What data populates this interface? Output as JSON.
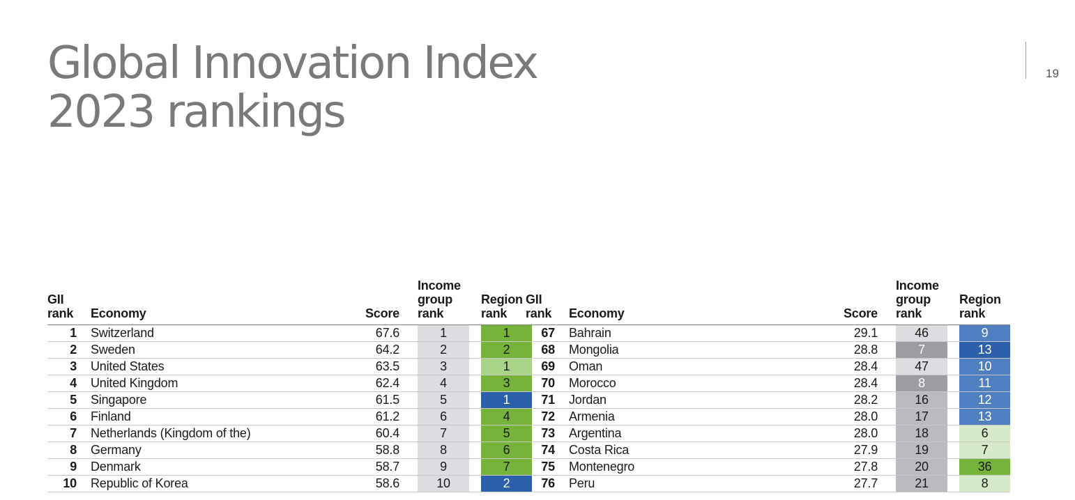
{
  "title": {
    "line1": "Global Innovation Index",
    "line2": "2023 rankings"
  },
  "page_number": "19",
  "headers": {
    "gii_rank_1": "GII",
    "gii_rank_2": "rank",
    "economy": "Economy",
    "score": "Score",
    "income_1": "Income",
    "income_2": "group",
    "income_3": "rank",
    "region_1": "Region",
    "region_2": "rank"
  },
  "colors": {
    "text": "#1a1a1a",
    "title": "#7a7a7a",
    "income_light_gray": "#dcdde0",
    "income_mid_gray": "#b9bbc0",
    "income_dark_gray": "#9c9ca3",
    "region_green": "#76b33a",
    "region_light_green": "#a9d487",
    "region_pale_green": "#d6eac7",
    "region_dark_blue": "#2d60ab",
    "region_mid_blue": "#4f7fc1"
  },
  "table_left": [
    {
      "gii": "1",
      "economy": "Switzerland",
      "score": "67.6",
      "income": "1",
      "income_bg": "#dcdde0",
      "income_fg": "#1a1a1a",
      "region": "1",
      "region_bg": "#76b33a",
      "region_fg": "#1a1a1a"
    },
    {
      "gii": "2",
      "economy": "Sweden",
      "score": "64.2",
      "income": "2",
      "income_bg": "#dcdde0",
      "income_fg": "#1a1a1a",
      "region": "2",
      "region_bg": "#76b33a",
      "region_fg": "#1a1a1a"
    },
    {
      "gii": "3",
      "economy": "United States",
      "score": "63.5",
      "income": "3",
      "income_bg": "#dcdde0",
      "income_fg": "#1a1a1a",
      "region": "1",
      "region_bg": "#a9d487",
      "region_fg": "#1a1a1a"
    },
    {
      "gii": "4",
      "economy": "United Kingdom",
      "score": "62.4",
      "income": "4",
      "income_bg": "#dcdde0",
      "income_fg": "#1a1a1a",
      "region": "3",
      "region_bg": "#76b33a",
      "region_fg": "#1a1a1a"
    },
    {
      "gii": "5",
      "economy": "Singapore",
      "score": "61.5",
      "income": "5",
      "income_bg": "#dcdde0",
      "income_fg": "#1a1a1a",
      "region": "1",
      "region_bg": "#2d60ab",
      "region_fg": "#ffffff"
    },
    {
      "gii": "6",
      "economy": "Finland",
      "score": "61.2",
      "income": "6",
      "income_bg": "#dcdde0",
      "income_fg": "#1a1a1a",
      "region": "4",
      "region_bg": "#76b33a",
      "region_fg": "#1a1a1a"
    },
    {
      "gii": "7",
      "economy": "Netherlands (Kingdom of the)",
      "score": "60.4",
      "income": "7",
      "income_bg": "#dcdde0",
      "income_fg": "#1a1a1a",
      "region": "5",
      "region_bg": "#76b33a",
      "region_fg": "#1a1a1a"
    },
    {
      "gii": "8",
      "economy": "Germany",
      "score": "58.8",
      "income": "8",
      "income_bg": "#dcdde0",
      "income_fg": "#1a1a1a",
      "region": "6",
      "region_bg": "#76b33a",
      "region_fg": "#1a1a1a"
    },
    {
      "gii": "9",
      "economy": "Denmark",
      "score": "58.7",
      "income": "9",
      "income_bg": "#dcdde0",
      "income_fg": "#1a1a1a",
      "region": "7",
      "region_bg": "#76b33a",
      "region_fg": "#1a1a1a"
    },
    {
      "gii": "10",
      "economy": "Republic of Korea",
      "score": "58.6",
      "income": "10",
      "income_bg": "#dcdde0",
      "income_fg": "#1a1a1a",
      "region": "2",
      "region_bg": "#2d60ab",
      "region_fg": "#ffffff"
    }
  ],
  "table_right": [
    {
      "gii": "67",
      "economy": "Bahrain",
      "score": "29.1",
      "income": "46",
      "income_bg": "#dcdde0",
      "income_fg": "#1a1a1a",
      "region": "9",
      "region_bg": "#4f7fc1",
      "region_fg": "#ffffff"
    },
    {
      "gii": "68",
      "economy": "Mongolia",
      "score": "28.8",
      "income": "7",
      "income_bg": "#9c9ca3",
      "income_fg": "#ffffff",
      "region": "13",
      "region_bg": "#2d60ab",
      "region_fg": "#ffffff"
    },
    {
      "gii": "69",
      "economy": "Oman",
      "score": "28.4",
      "income": "47",
      "income_bg": "#dcdde0",
      "income_fg": "#1a1a1a",
      "region": "10",
      "region_bg": "#4f7fc1",
      "region_fg": "#ffffff"
    },
    {
      "gii": "70",
      "economy": "Morocco",
      "score": "28.4",
      "income": "8",
      "income_bg": "#9c9ca3",
      "income_fg": "#ffffff",
      "region": "11",
      "region_bg": "#4f7fc1",
      "region_fg": "#ffffff"
    },
    {
      "gii": "71",
      "economy": "Jordan",
      "score": "28.2",
      "income": "16",
      "income_bg": "#b9bbc0",
      "income_fg": "#1a1a1a",
      "region": "12",
      "region_bg": "#4f7fc1",
      "region_fg": "#ffffff"
    },
    {
      "gii": "72",
      "economy": "Armenia",
      "score": "28.0",
      "income": "17",
      "income_bg": "#b9bbc0",
      "income_fg": "#1a1a1a",
      "region": "13",
      "region_bg": "#4f7fc1",
      "region_fg": "#ffffff"
    },
    {
      "gii": "73",
      "economy": "Argentina",
      "score": "28.0",
      "income": "18",
      "income_bg": "#b9bbc0",
      "income_fg": "#1a1a1a",
      "region": "6",
      "region_bg": "#d6eac7",
      "region_fg": "#1a1a1a"
    },
    {
      "gii": "74",
      "economy": "Costa Rica",
      "score": "27.9",
      "income": "19",
      "income_bg": "#b9bbc0",
      "income_fg": "#1a1a1a",
      "region": "7",
      "region_bg": "#d6eac7",
      "region_fg": "#1a1a1a"
    },
    {
      "gii": "75",
      "economy": "Montenegro",
      "score": "27.8",
      "income": "20",
      "income_bg": "#b9bbc0",
      "income_fg": "#1a1a1a",
      "region": "36",
      "region_bg": "#76b33a",
      "region_fg": "#1a1a1a"
    },
    {
      "gii": "76",
      "economy": "Peru",
      "score": "27.7",
      "income": "21",
      "income_bg": "#b9bbc0",
      "income_fg": "#1a1a1a",
      "region": "8",
      "region_bg": "#d6eac7",
      "region_fg": "#1a1a1a"
    }
  ]
}
